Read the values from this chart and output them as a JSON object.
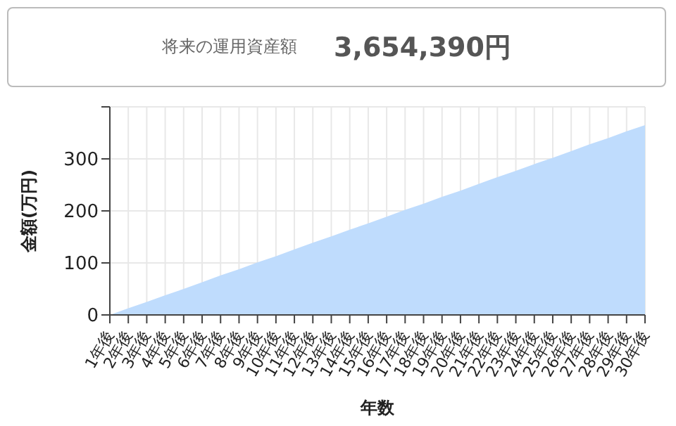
{
  "chart_data": {
    "type": "area",
    "title": "将来の運用資産額",
    "subtitle": "3,654,390円",
    "xlabel": "年数",
    "ylabel": "金額(万円)",
    "categories": [
      "1年後",
      "2年後",
      "3年後",
      "4年後",
      "5年後",
      "6年後",
      "7年後",
      "8年後",
      "9年後",
      "10年後",
      "11年後",
      "12年後",
      "13年後",
      "14年後",
      "15年後",
      "16年後",
      "17年後",
      "18年後",
      "19年後",
      "20年後",
      "21年後",
      "22年後",
      "23年後",
      "24年後",
      "25年後",
      "26年後",
      "27年後",
      "28年後",
      "29年後",
      "30年後"
    ],
    "series": [
      {
        "color": "#bfdcfd",
        "values": [
          0,
          13,
          25,
          38,
          50,
          63,
          76,
          88,
          101,
          113,
          126,
          139,
          151,
          164,
          176,
          189,
          202,
          214,
          227,
          239,
          252,
          265,
          277,
          290,
          302,
          315,
          328,
          340,
          353,
          365
        ]
      }
    ],
    "ylim": [
      0,
      400
    ],
    "yticks": [
      0,
      100,
      200,
      300,
      {
        "value": 400,
        "label": null
      }
    ],
    "grid": true,
    "legend": false
  }
}
